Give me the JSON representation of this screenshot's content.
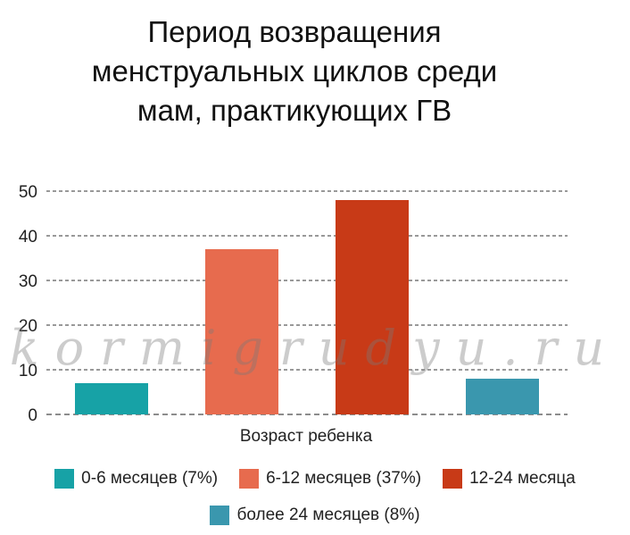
{
  "chart_data": {
    "type": "bar",
    "title_lines": [
      "Период возвращения",
      "менструальных циклов среди",
      "мам, практикующих ГВ"
    ],
    "xlabel": "Возраст ребенка",
    "ylabel": "",
    "ylim": [
      0,
      50
    ],
    "yticks": [
      "0",
      "10",
      "20",
      "30",
      "40",
      "50"
    ],
    "grid": true,
    "legend_position": "bottom",
    "series": [
      {
        "name": "0-6 месяцев (7%)",
        "value": 7,
        "color": "#17a2a6"
      },
      {
        "name": "6-12 месяцев (37%)",
        "value": 37,
        "color": "#e76b4e"
      },
      {
        "name": "12-24 месяца",
        "value": 48,
        "color": "#c83a17"
      },
      {
        "name": "более 24 месяцев (8%)",
        "value": 8,
        "color": "#3a97ae"
      }
    ]
  },
  "watermark": "kormigrudyu.ru"
}
